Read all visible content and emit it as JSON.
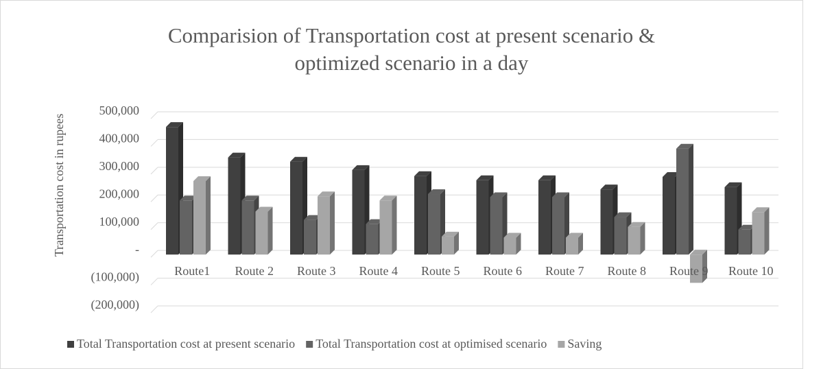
{
  "chart_data": {
    "type": "bar3d",
    "title": [
      "Comparision of Transportation cost at present scenario &",
      "optimized scenario in a day"
    ],
    "ylabel": "Transportation cost in rupees",
    "categories": [
      "Route1",
      "Route 2",
      "Route 3",
      "Route 4",
      "Route 5",
      "Route 6",
      "Route 7",
      "Route 8",
      "Route 9",
      "Route 10"
    ],
    "series": [
      {
        "name": "Total Transportation cost at present scenario",
        "color": "#404040",
        "values": [
          460000,
          350000,
          335000,
          305000,
          283000,
          268000,
          268000,
          235000,
          280000,
          243000
        ]
      },
      {
        "name": "Total Transportation cost at optimised scenario",
        "color": "#636363",
        "values": [
          195000,
          195000,
          125000,
          110000,
          218000,
          207000,
          207000,
          135000,
          382000,
          90000
        ]
      },
      {
        "name": "Saving",
        "color": "#a6a6a6",
        "values": [
          265000,
          155000,
          210000,
          195000,
          65000,
          61000,
          61000,
          100000,
          -102000,
          153000
        ]
      }
    ],
    "ylim": [
      -200000,
      500000
    ],
    "yticks": [
      {
        "value": -200000,
        "label": "(200,000)"
      },
      {
        "value": -100000,
        "label": "(100,000)"
      },
      {
        "value": 0,
        "label": "-"
      },
      {
        "value": 100000,
        "label": "100,000"
      },
      {
        "value": 200000,
        "label": "200,000"
      },
      {
        "value": 300000,
        "label": "300,000"
      },
      {
        "value": 400000,
        "label": "400,000"
      },
      {
        "value": 500000,
        "label": "500,000"
      }
    ],
    "grid": true,
    "legend": "bottom"
  }
}
